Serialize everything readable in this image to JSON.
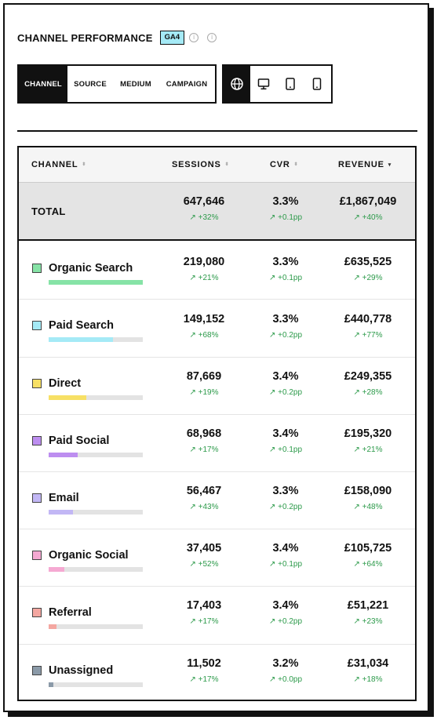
{
  "header": {
    "title": "CHANNEL PERFORMANCE",
    "badge": "GA4",
    "info_glyph": "i"
  },
  "tabs": [
    {
      "label": "CHANNEL",
      "active": true
    },
    {
      "label": "SOURCE",
      "active": false
    },
    {
      "label": "MEDIUM",
      "active": false
    },
    {
      "label": "CAMPAIGN",
      "active": false
    }
  ],
  "devices": [
    {
      "icon": "globe-icon",
      "active": true
    },
    {
      "icon": "desktop-icon",
      "active": false
    },
    {
      "icon": "tablet-icon",
      "active": false
    },
    {
      "icon": "mobile-icon",
      "active": false
    }
  ],
  "table": {
    "columns": {
      "channel": "CHANNEL",
      "sessions": "SESSIONS",
      "cvr": "CVR",
      "revenue": "REVENUE"
    },
    "sort_glyphs": {
      "inactive": "⬍",
      "active": "▾"
    },
    "total": {
      "label": "TOTAL",
      "sessions": "647,646",
      "sessions_delta": "↗ +32%",
      "cvr": "3.3%",
      "cvr_delta": "↗ +0.1pp",
      "revenue": "£1,867,049",
      "revenue_delta": "↗ +40%"
    },
    "rows": [
      {
        "name": "Organic Search",
        "color": "#86e3a6",
        "share": 1.0,
        "sessions": "219,080",
        "sessions_delta": "↗ +21%",
        "cvr": "3.3%",
        "cvr_delta": "↗ +0.1pp",
        "revenue": "£635,525",
        "revenue_delta": "↗ +29%"
      },
      {
        "name": "Paid Search",
        "color": "#a5eaf6",
        "share": 0.68,
        "sessions": "149,152",
        "sessions_delta": "↗ +68%",
        "cvr": "3.3%",
        "cvr_delta": "↗ +0.2pp",
        "revenue": "£440,778",
        "revenue_delta": "↗ +77%"
      },
      {
        "name": "Direct",
        "color": "#f7e065",
        "share": 0.4,
        "sessions": "87,669",
        "sessions_delta": "↗ +19%",
        "cvr": "3.4%",
        "cvr_delta": "↗ +0.2pp",
        "revenue": "£249,355",
        "revenue_delta": "↗ +28%"
      },
      {
        "name": "Paid Social",
        "color": "#bd8ef0",
        "share": 0.31,
        "sessions": "68,968",
        "sessions_delta": "↗ +17%",
        "cvr": "3.4%",
        "cvr_delta": "↗ +0.1pp",
        "revenue": "£195,320",
        "revenue_delta": "↗ +21%"
      },
      {
        "name": "Email",
        "color": "#c2b7f5",
        "share": 0.26,
        "sessions": "56,467",
        "sessions_delta": "↗ +43%",
        "cvr": "3.3%",
        "cvr_delta": "↗ +0.2pp",
        "revenue": "£158,090",
        "revenue_delta": "↗ +48%"
      },
      {
        "name": "Organic Social",
        "color": "#f5a9d2",
        "share": 0.17,
        "sessions": "37,405",
        "sessions_delta": "↗ +52%",
        "cvr": "3.4%",
        "cvr_delta": "↗ +0.1pp",
        "revenue": "£105,725",
        "revenue_delta": "↗ +64%"
      },
      {
        "name": "Referral",
        "color": "#f4a7a1",
        "share": 0.08,
        "sessions": "17,403",
        "sessions_delta": "↗ +17%",
        "cvr": "3.4%",
        "cvr_delta": "↗ +0.2pp",
        "revenue": "£51,221",
        "revenue_delta": "↗ +23%"
      },
      {
        "name": "Unassigned",
        "color": "#8b9aa8",
        "share": 0.05,
        "sessions": "11,502",
        "sessions_delta": "↗ +17%",
        "cvr": "3.2%",
        "cvr_delta": "↗ +0.0pp",
        "revenue": "£31,034",
        "revenue_delta": "↗ +18%"
      }
    ]
  }
}
